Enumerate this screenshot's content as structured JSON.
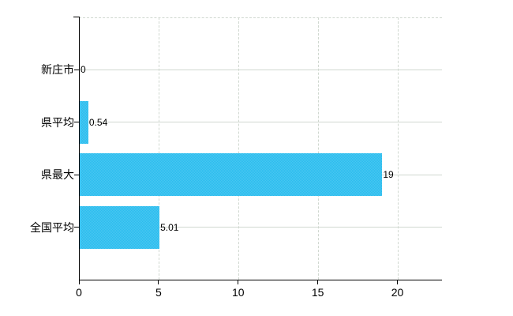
{
  "chart_data": {
    "type": "bar",
    "orientation": "horizontal",
    "title": "",
    "categories": [
      "新庄市",
      "県平均",
      "県最大",
      "全国平均"
    ],
    "values": [
      0,
      0.54,
      19,
      5.01
    ],
    "value_labels": [
      "0",
      "0.54",
      "19",
      "5.01"
    ],
    "x_tick_labels": [
      "0",
      "5",
      "10",
      "15",
      "20"
    ],
    "x_tick_values": [
      0,
      5,
      10,
      15,
      20
    ],
    "xlim": [
      0,
      22.8
    ],
    "grid": "horizontal solid, vertical dashed, dashed top border",
    "legend_visible": false,
    "colors": {
      "bar": "#33c1ef",
      "bar_light": "#4ac6f1",
      "bar_dark": "#29bdee",
      "grid": "#d0d8d0",
      "axis": "#000000",
      "text": "#000000",
      "background": "#ffffff"
    }
  }
}
